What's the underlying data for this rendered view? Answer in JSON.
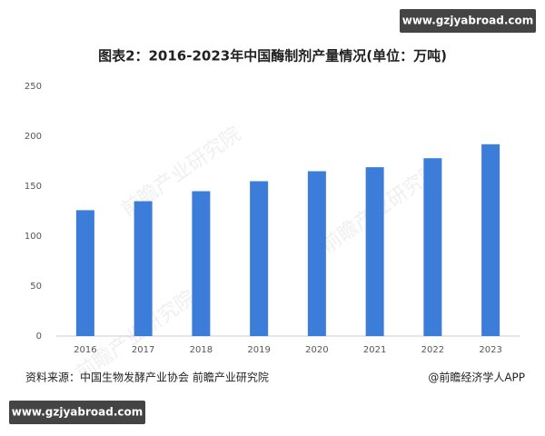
{
  "chart_data": {
    "type": "bar",
    "title": "图表2：2016-2023年中国酶制剂产量情况(单位：万吨)",
    "categories": [
      "2016",
      "2017",
      "2018",
      "2019",
      "2020",
      "2021",
      "2022",
      "2023"
    ],
    "values": [
      126,
      135,
      145,
      155,
      165,
      169,
      178,
      192
    ],
    "color": "#3b7dd8",
    "ylim": [
      0,
      250
    ],
    "yticks": [
      0,
      50,
      100,
      150,
      200,
      250
    ],
    "grid": false,
    "source": "资料来源：中国生物发酵产业协会 前瞻产业研究院",
    "credit": "@前瞻经济学人APP"
  },
  "site_badge": "www.gzjyabroad.com",
  "watermark": "前瞻产业研究院"
}
